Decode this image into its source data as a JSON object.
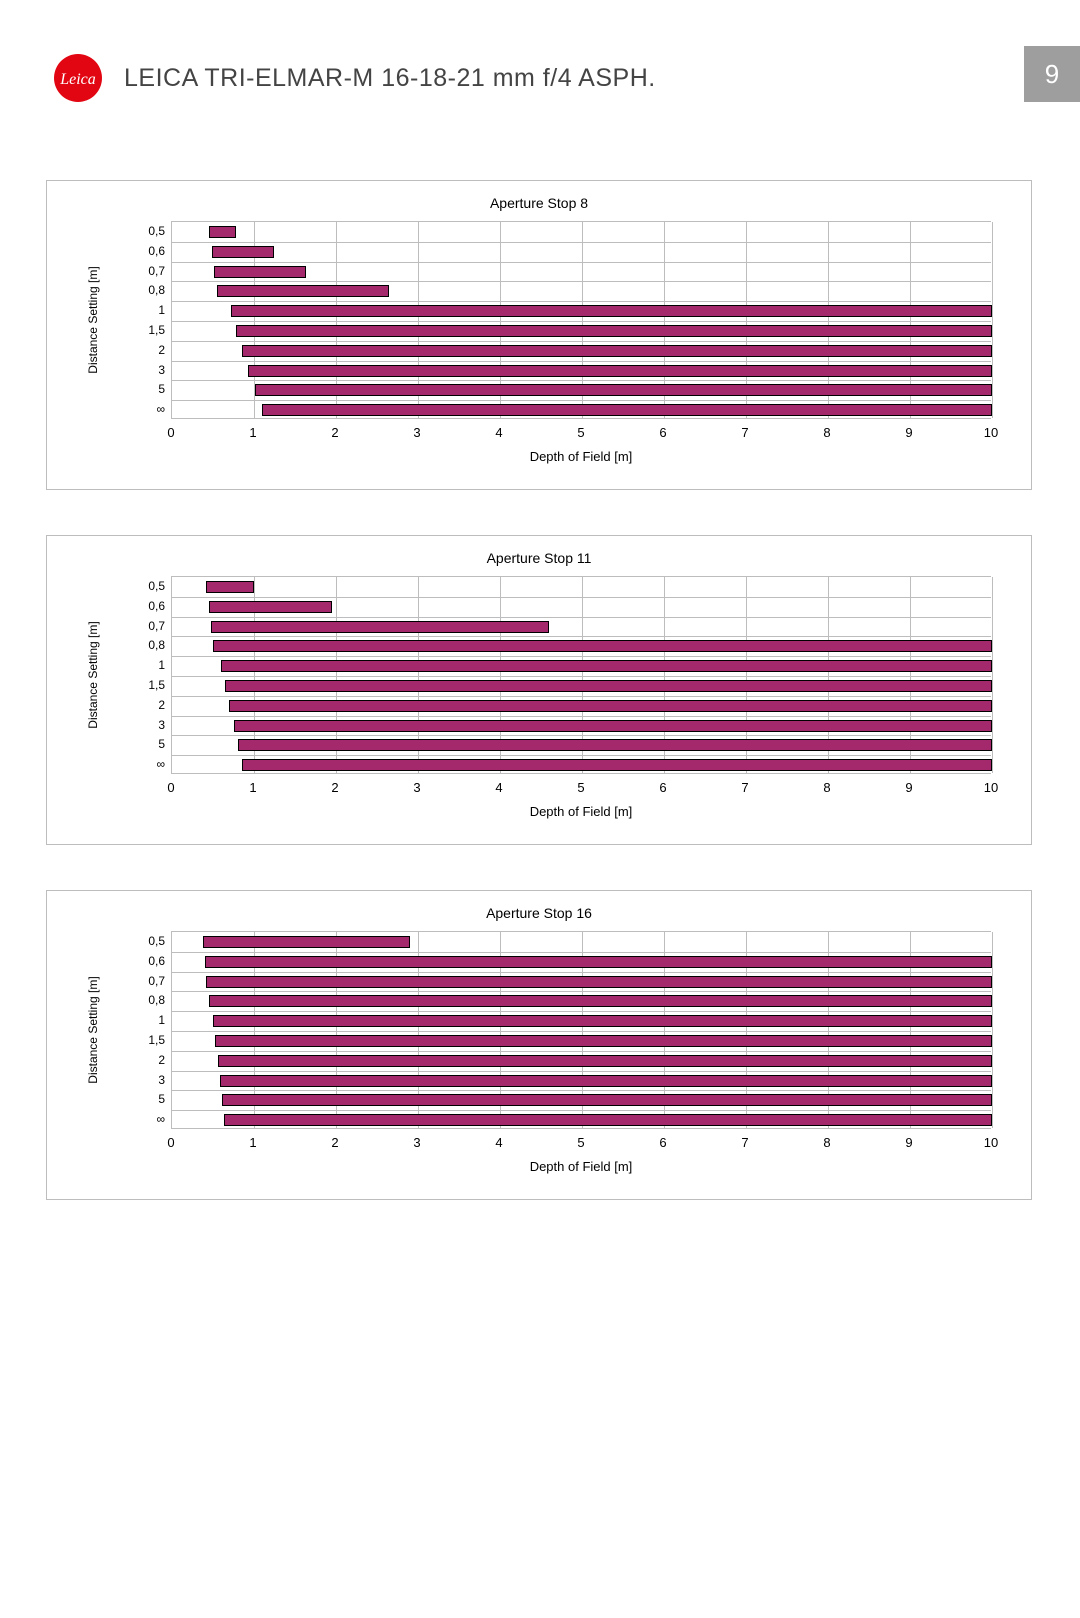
{
  "header": {
    "title": "LEICA TRI-ELMAR-M 16-18-21 mm f/4 ASPH.",
    "page_number": "9",
    "logo_bg": "#e20612",
    "logo_text": "Leica",
    "logo_text_color": "#ffffff"
  },
  "layout": {
    "page_bg": "#ffffff",
    "panel_border": "#bdbdbd",
    "grid_color": "#bdbdbd",
    "bar_fill": "#a3296c",
    "bar_border": "#000000",
    "title_fontsize": 14,
    "tick_fontsize": 12,
    "chart_tops": [
      180,
      535,
      890
    ]
  },
  "axes": {
    "x": {
      "label": "Depth of Field [m]",
      "min": 0,
      "max": 10,
      "ticks": [
        0,
        1,
        2,
        3,
        4,
        5,
        6,
        7,
        8,
        9,
        10
      ]
    },
    "y": {
      "label": "Distance Setting [m]",
      "categories": [
        "0,5",
        "0,6",
        "0,7",
        "0,8",
        "1",
        "1,5",
        "2",
        "3",
        "5",
        "∞"
      ]
    }
  },
  "charts": [
    {
      "title": "Aperture Stop 8",
      "bars": [
        {
          "start": 0.45,
          "end": 0.78
        },
        {
          "start": 0.49,
          "end": 1.25
        },
        {
          "start": 0.51,
          "end": 1.63
        },
        {
          "start": 0.55,
          "end": 2.65
        },
        {
          "start": 0.72,
          "end": 10.1
        },
        {
          "start": 0.78,
          "end": 10.1
        },
        {
          "start": 0.85,
          "end": 10.1
        },
        {
          "start": 0.93,
          "end": 10.1
        },
        {
          "start": 1.01,
          "end": 10.1
        },
        {
          "start": 1.1,
          "end": 10.1
        }
      ]
    },
    {
      "title": "Aperture Stop 11",
      "bars": [
        {
          "start": 0.42,
          "end": 1.0
        },
        {
          "start": 0.45,
          "end": 1.95
        },
        {
          "start": 0.47,
          "end": 4.6
        },
        {
          "start": 0.5,
          "end": 10.1
        },
        {
          "start": 0.6,
          "end": 10.1
        },
        {
          "start": 0.65,
          "end": 10.1
        },
        {
          "start": 0.7,
          "end": 10.1
        },
        {
          "start": 0.75,
          "end": 10.1
        },
        {
          "start": 0.8,
          "end": 10.1
        },
        {
          "start": 0.85,
          "end": 10.1
        }
      ]
    },
    {
      "title": "Aperture Stop 16",
      "bars": [
        {
          "start": 0.38,
          "end": 2.9
        },
        {
          "start": 0.4,
          "end": 10.1
        },
        {
          "start": 0.42,
          "end": 10.1
        },
        {
          "start": 0.45,
          "end": 10.1
        },
        {
          "start": 0.5,
          "end": 10.1
        },
        {
          "start": 0.53,
          "end": 10.1
        },
        {
          "start": 0.56,
          "end": 10.1
        },
        {
          "start": 0.59,
          "end": 10.1
        },
        {
          "start": 0.61,
          "end": 10.1
        },
        {
          "start": 0.63,
          "end": 10.1
        }
      ]
    }
  ]
}
